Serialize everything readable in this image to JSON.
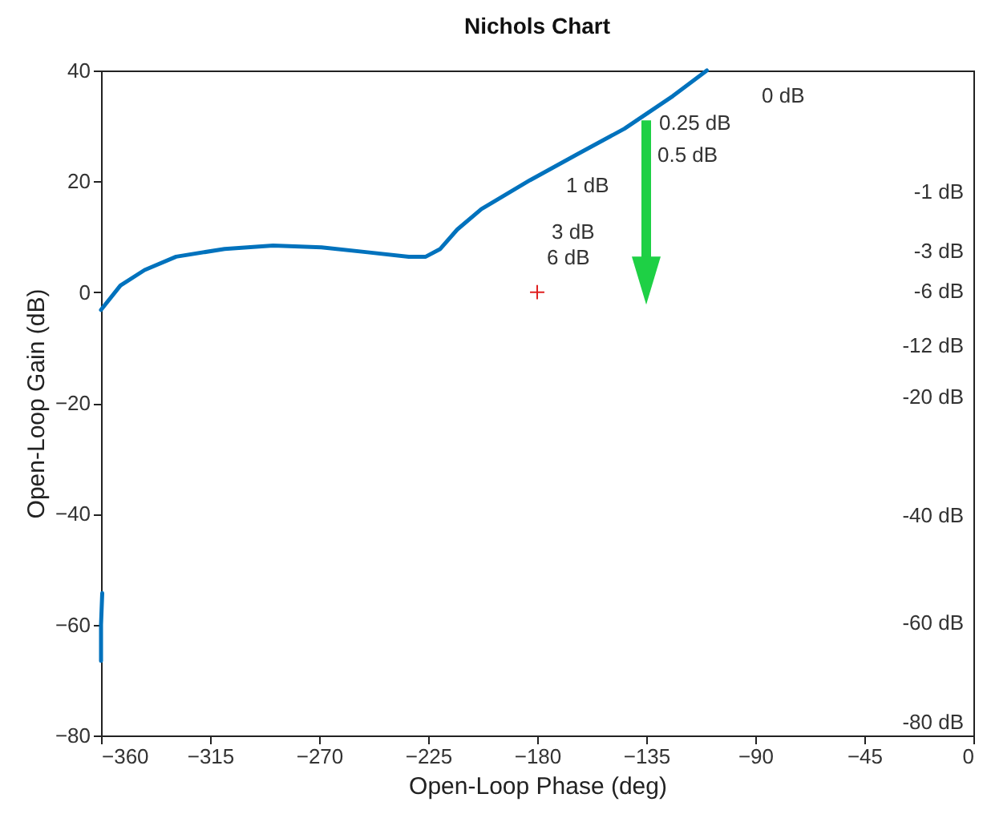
{
  "chart_data": {
    "type": "line",
    "title": "Nichols Chart",
    "xlabel": "Open-Loop Phase (deg)",
    "ylabel": "Open-Loop Gain (dB)",
    "xlim": [
      -360,
      0
    ],
    "xticks": [
      -360,
      -315,
      -270,
      -225,
      -180,
      -135,
      -90,
      -45,
      0
    ],
    "ylim": [
      -80,
      40
    ],
    "yticks": [
      -80,
      -60,
      -40,
      -20,
      0,
      20,
      40
    ],
    "grid": false,
    "line_style": "solid",
    "series": [
      {
        "color": "#0072bd",
        "x": [
          -360,
          -352,
          -342,
          -329,
          -309,
          -289,
          -269,
          -250,
          -233,
          -226,
          -220,
          -213,
          -203,
          -183,
          -163,
          -144,
          -124,
          -110
        ],
        "values": [
          -3.2,
          1.2,
          4,
          6.4,
          7.8,
          8.4,
          8.1,
          7.2,
          6.4,
          6.4,
          7.8,
          11.3,
          15,
          20.2,
          25,
          29.5,
          35.4,
          40
        ]
      },
      {
        "color": "#0072bd",
        "x": [
          -359.5,
          -360,
          -360
        ],
        "values": [
          -54.3,
          -60,
          -66.5
        ]
      },
      {
        "type": "scatter",
        "marker": "cross",
        "color": "#e02020",
        "x": [
          -180
        ],
        "values": [
          0
        ]
      }
    ],
    "annotations": [
      "0 dB",
      "0.25 dB",
      "0.5 dB",
      "1 dB",
      "3 dB",
      "6 dB",
      "-1 dB",
      "-3 dB",
      "-6 dB",
      "-12 dB",
      "-20 dB",
      "-40 dB",
      "-60 dB",
      "-80 dB"
    ]
  }
}
